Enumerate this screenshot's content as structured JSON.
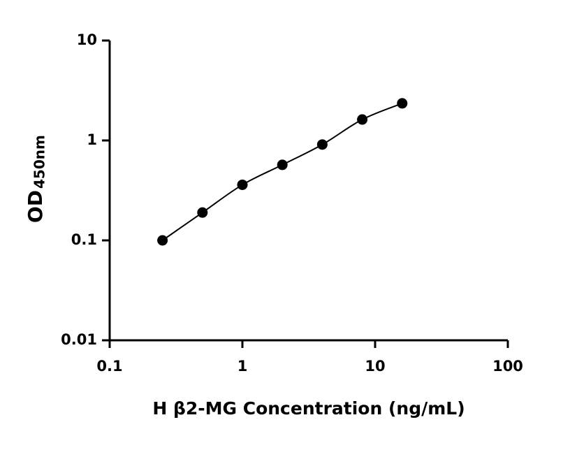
{
  "chart_data": {
    "type": "scatter",
    "xlabel": "H β2-MG Concentration (ng/mL)",
    "ylabel": "OD",
    "ylabel_subscript": "450nm",
    "x": [
      0.25,
      0.5,
      1,
      2,
      4,
      8,
      16
    ],
    "series": [
      {
        "color": "#000000",
        "values": [
          0.1,
          0.19,
          0.36,
          0.57,
          0.91,
          1.62,
          2.35
        ]
      }
    ],
    "xscale": "log",
    "yscale": "log",
    "xlim": [
      0.1,
      100
    ],
    "ylim": [
      0.01,
      10
    ],
    "xticks": [
      0.1,
      1,
      10,
      100
    ],
    "yticks": [
      0.01,
      0.1,
      1,
      10
    ],
    "fit_line": true
  }
}
